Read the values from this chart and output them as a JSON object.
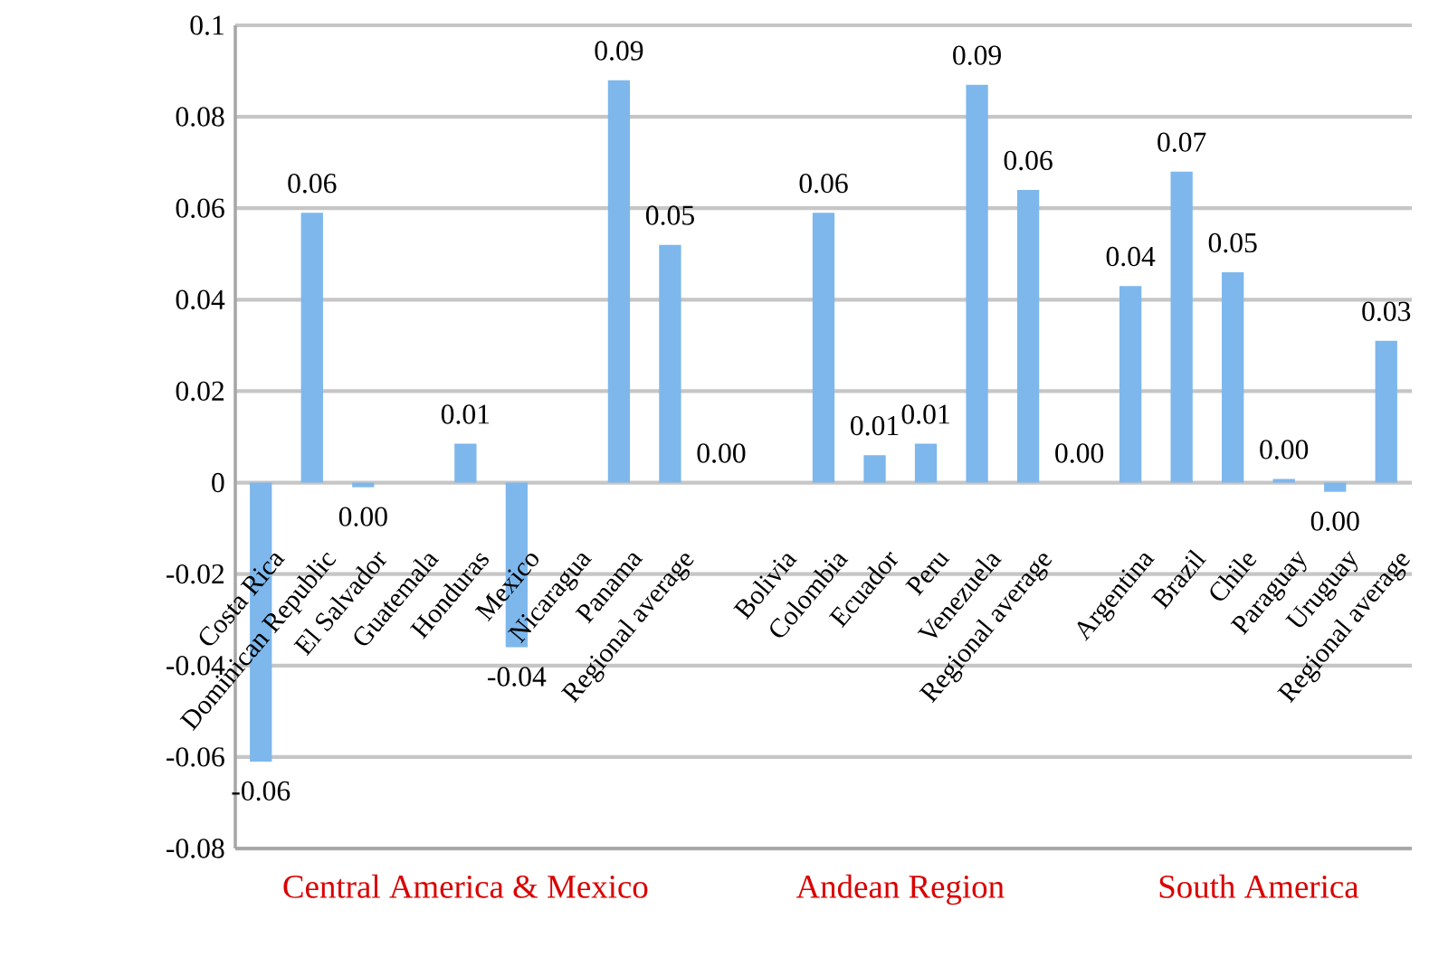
{
  "chart_data": {
    "type": "bar",
    "categories": [
      "Costa Rica",
      "Dominican Republic",
      "El Salvador",
      "Guatemala",
      "Honduras",
      "Mexico",
      "Nicaragua",
      "Panama",
      "Regional average",
      null,
      "Bolivia",
      "Colombia",
      "Ecuador",
      "Peru",
      "Venezuela",
      "Regional average",
      null,
      "Argentina",
      "Brazil",
      "Chile",
      "Paraguay",
      "Uruguay",
      "Regional average"
    ],
    "values": [
      -0.061,
      0.059,
      -0.001,
      null,
      0.0085,
      -0.036,
      null,
      0.088,
      0.052,
      0,
      null,
      0.059,
      0.006,
      0.0085,
      0.087,
      0.064,
      0,
      0.043,
      0.068,
      0.046,
      0.0008,
      -0.002,
      0.031
    ],
    "value_labels": [
      "-0.06",
      "0.06",
      "0.00",
      null,
      "0.01",
      "-0.04",
      null,
      "0.09",
      "0.05",
      "0.00",
      null,
      "0.06",
      "0.01",
      "0.01",
      "0.09",
      "0.06",
      "0.00",
      "0.04",
      "0.07",
      "0.05",
      "0.00",
      "0.00",
      "0.03"
    ],
    "color": "#7db7ec",
    "ylim": [
      -0.08,
      0.1
    ],
    "yticks": [
      -0.08,
      -0.06,
      -0.04,
      -0.02,
      0,
      0.02,
      0.04,
      0.06,
      0.08,
      0.1
    ],
    "grid": "y",
    "annotations": [
      "Central America & Mexico",
      "Andean Region",
      "South America"
    ]
  }
}
